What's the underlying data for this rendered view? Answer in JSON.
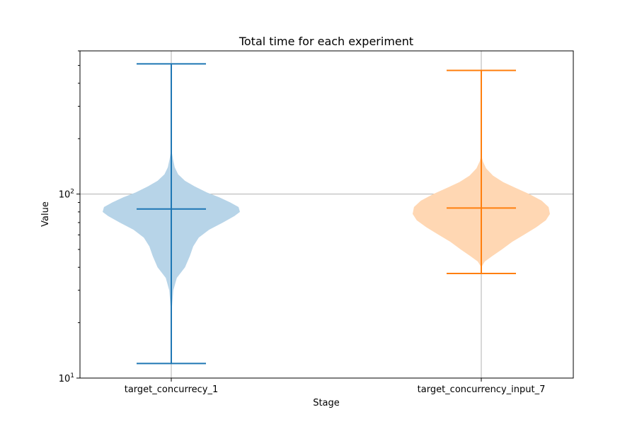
{
  "chart_data": {
    "type": "violin",
    "title": "Total time for each experiment",
    "xlabel": "Stage",
    "ylabel": "Value",
    "yscale": "log",
    "ylim": [
      10,
      600
    ],
    "yticks": [
      {
        "value": 10,
        "base": "10",
        "exp": "1"
      },
      {
        "value": 100,
        "base": "10",
        "exp": "2"
      }
    ],
    "grid": true,
    "categories": [
      "target_concurrecy_1",
      "target_concurrency_input_7"
    ],
    "series": [
      {
        "category": "target_concurrecy_1",
        "min": 12,
        "median": 83,
        "max": 510,
        "body_color": "#b7d4e8",
        "line_color": "#1f77b4",
        "density": [
          {
            "v": 22,
            "w": 0.0
          },
          {
            "v": 30,
            "w": 0.03
          },
          {
            "v": 35,
            "w": 0.08
          },
          {
            "v": 40,
            "w": 0.2
          },
          {
            "v": 46,
            "w": 0.27
          },
          {
            "v": 52,
            "w": 0.32
          },
          {
            "v": 58,
            "w": 0.4
          },
          {
            "v": 64,
            "w": 0.55
          },
          {
            "v": 70,
            "w": 0.75
          },
          {
            "v": 76,
            "w": 0.92
          },
          {
            "v": 80,
            "w": 1.0
          },
          {
            "v": 85,
            "w": 0.98
          },
          {
            "v": 90,
            "w": 0.86
          },
          {
            "v": 96,
            "w": 0.7
          },
          {
            "v": 102,
            "w": 0.52
          },
          {
            "v": 110,
            "w": 0.34
          },
          {
            "v": 118,
            "w": 0.2
          },
          {
            "v": 128,
            "w": 0.1
          },
          {
            "v": 140,
            "w": 0.05
          },
          {
            "v": 155,
            "w": 0.025
          },
          {
            "v": 175,
            "w": 0.0
          }
        ]
      },
      {
        "category": "target_concurrency_input_7",
        "min": 37,
        "median": 84,
        "max": 470,
        "body_color": "#ffd7b3",
        "line_color": "#ff7f0e",
        "density": [
          {
            "v": 40,
            "w": 0.0
          },
          {
            "v": 43,
            "w": 0.05
          },
          {
            "v": 46,
            "w": 0.16
          },
          {
            "v": 50,
            "w": 0.3
          },
          {
            "v": 55,
            "w": 0.45
          },
          {
            "v": 60,
            "w": 0.62
          },
          {
            "v": 66,
            "w": 0.8
          },
          {
            "v": 72,
            "w": 0.94
          },
          {
            "v": 78,
            "w": 1.0
          },
          {
            "v": 85,
            "w": 0.98
          },
          {
            "v": 92,
            "w": 0.88
          },
          {
            "v": 100,
            "w": 0.7
          },
          {
            "v": 108,
            "w": 0.5
          },
          {
            "v": 116,
            "w": 0.32
          },
          {
            "v": 126,
            "w": 0.17
          },
          {
            "v": 138,
            "w": 0.07
          },
          {
            "v": 150,
            "w": 0.025
          },
          {
            "v": 162,
            "w": 0.0
          }
        ]
      }
    ]
  }
}
